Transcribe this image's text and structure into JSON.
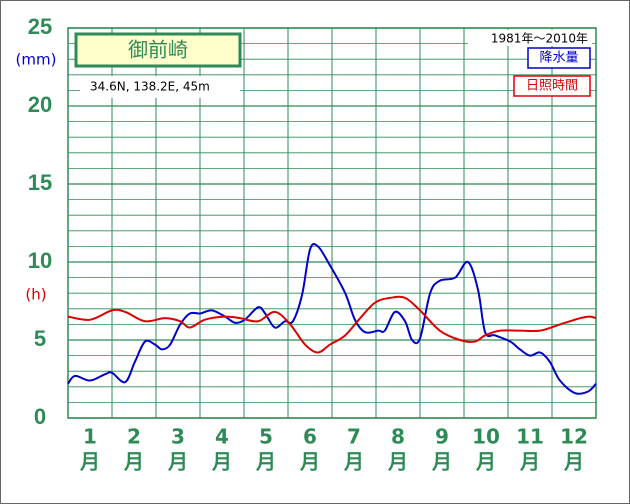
{
  "chart_data": {
    "type": "line",
    "title": "御前崎",
    "subtitle": "34.6N,  138.2E,  45m",
    "period": "1981年〜2010年",
    "y_unit_left": "(mm)",
    "y_unit_right": "(h)",
    "categories": [
      "1",
      "2",
      "3",
      "4",
      "5",
      "6",
      "7",
      "8",
      "9",
      "10",
      "11",
      "12"
    ],
    "category_unit": "月",
    "xlim": [
      0.5,
      12.5
    ],
    "ylim": [
      0,
      25
    ],
    "yticks": [
      0,
      5,
      10,
      15,
      20,
      25
    ],
    "grid": true,
    "series": [
      {
        "name": "降水量",
        "color": "#0000cc",
        "x": [
          0.5,
          0.66,
          1.0,
          1.34,
          1.5,
          1.8,
          2.02,
          2.25,
          2.48,
          2.64,
          2.82,
          3.05,
          3.27,
          3.5,
          3.77,
          4.07,
          4.3,
          4.52,
          4.82,
          4.98,
          5.2,
          5.43,
          5.61,
          5.82,
          6.0,
          6.18,
          6.45,
          6.8,
          7.02,
          7.25,
          7.55,
          7.7,
          7.93,
          8.16,
          8.32,
          8.5,
          8.73,
          8.95,
          9.3,
          9.59,
          9.82,
          9.98,
          10.2,
          10.55,
          10.77,
          11.0,
          11.23,
          11.45,
          11.68,
          12.02,
          12.32,
          12.5
        ],
        "values": [
          2.2,
          2.7,
          2.4,
          2.8,
          2.9,
          2.3,
          3.6,
          4.9,
          4.7,
          4.4,
          4.7,
          6.0,
          6.7,
          6.7,
          6.9,
          6.5,
          6.1,
          6.3,
          7.1,
          6.7,
          5.8,
          6.2,
          6.2,
          7.9,
          10.8,
          11.0,
          9.8,
          8.0,
          6.3,
          5.5,
          5.6,
          5.6,
          6.8,
          6.2,
          5.0,
          5.1,
          8.0,
          8.8,
          9.0,
          10.0,
          8.2,
          5.5,
          5.3,
          4.9,
          4.4,
          4.0,
          4.2,
          3.6,
          2.4,
          1.6,
          1.7,
          2.2
        ]
      },
      {
        "name": "日照時間",
        "color": "#dd0000",
        "x": [
          0.5,
          1.0,
          1.5,
          1.8,
          2.25,
          2.7,
          3.05,
          3.27,
          3.61,
          4.07,
          4.41,
          4.82,
          5.2,
          5.55,
          5.89,
          6.18,
          6.45,
          6.8,
          7.14,
          7.48,
          7.82,
          8.16,
          8.5,
          8.95,
          9.41,
          9.75,
          9.98,
          10.32,
          10.77,
          11.23,
          11.68,
          12.14,
          12.36,
          12.5
        ],
        "values": [
          6.5,
          6.3,
          6.9,
          6.8,
          6.2,
          6.4,
          6.2,
          5.8,
          6.3,
          6.5,
          6.4,
          6.2,
          6.8,
          6.0,
          4.7,
          4.2,
          4.7,
          5.3,
          6.4,
          7.4,
          7.7,
          7.7,
          6.9,
          5.6,
          5.0,
          4.9,
          5.3,
          5.6,
          5.6,
          5.6,
          6.0,
          6.4,
          6.5,
          6.4
        ]
      }
    ]
  }
}
